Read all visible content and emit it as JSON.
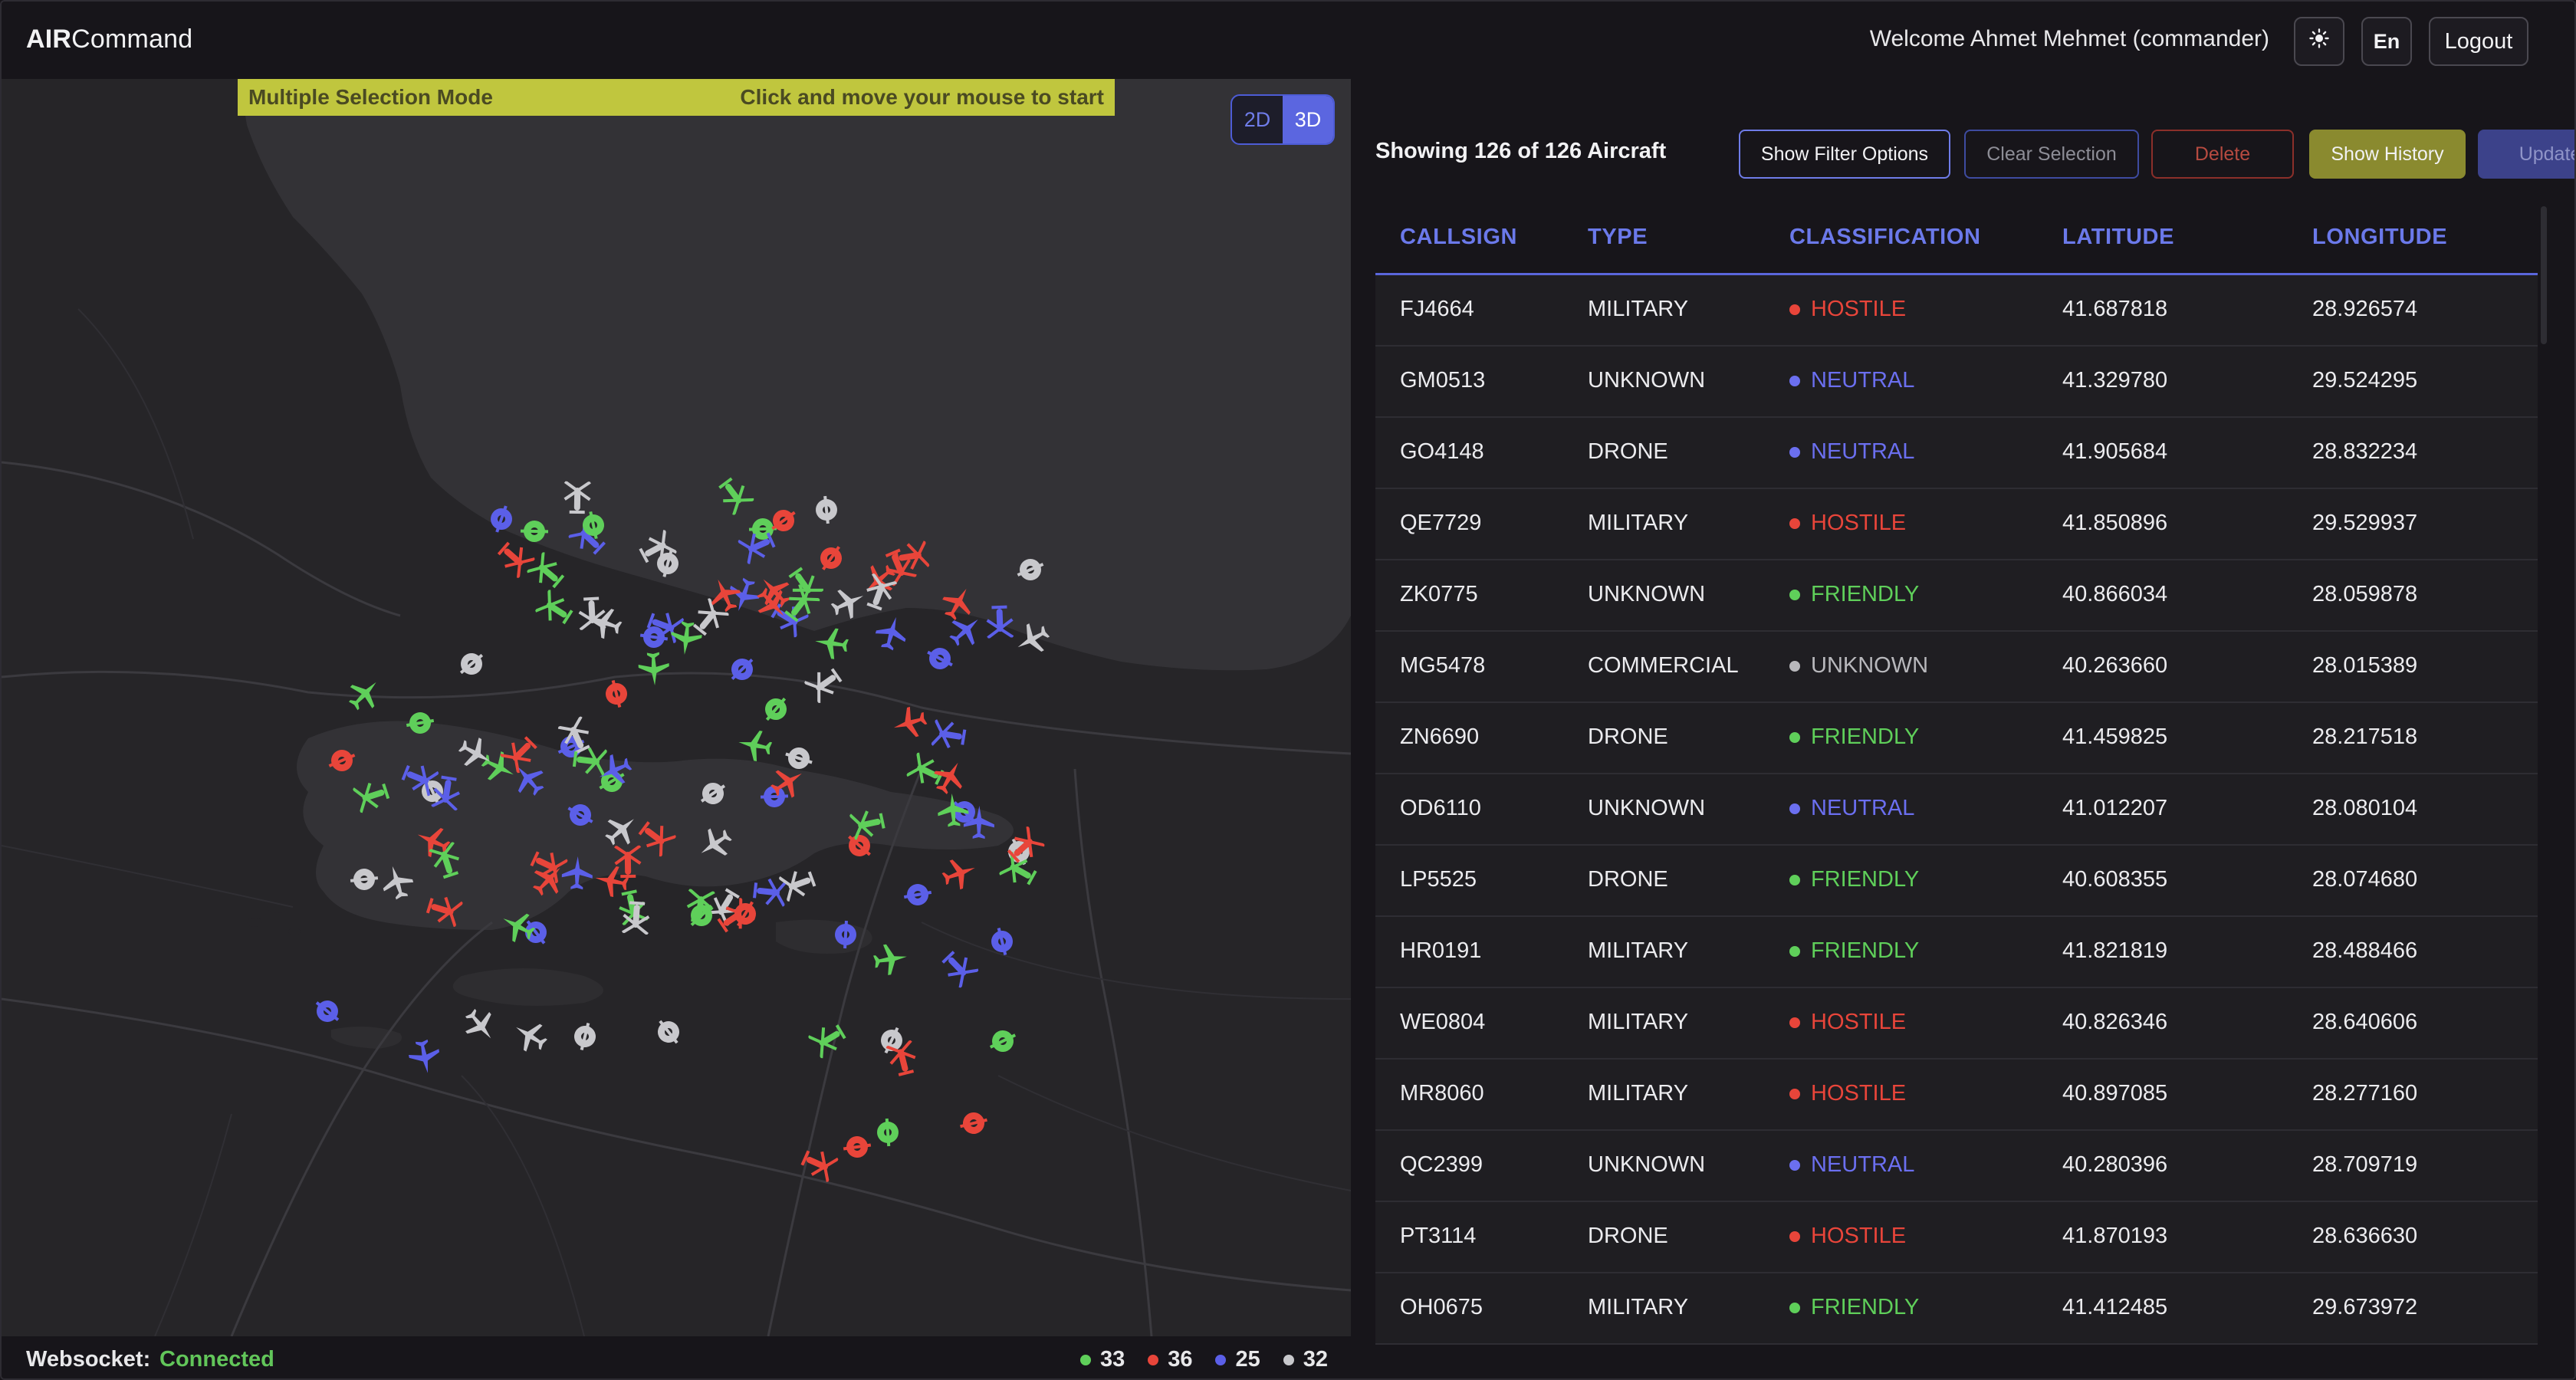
{
  "header": {
    "logo_bold": "AIR",
    "logo_rest": "Command",
    "welcome": "Welcome Ahmet Mehmet (commander)",
    "theme_icon": "sun-icon",
    "lang": "En",
    "logout": "Logout"
  },
  "map": {
    "banner_left": "Multiple Selection Mode",
    "banner_right": "Click and move your mouse to start",
    "view_2d": "2D",
    "view_3d": "3D",
    "active_view": "3D",
    "icons": [
      "plane-icon",
      "drone-icon",
      "helicopter-icon"
    ]
  },
  "footer": {
    "ws_label": "Websocket:",
    "ws_status": "Connected",
    "counts": [
      {
        "count": "33",
        "color": "#5fcf5a"
      },
      {
        "count": "36",
        "color": "#e8453a"
      },
      {
        "count": "25",
        "color": "#5b5fe8"
      },
      {
        "count": "32",
        "color": "#c8c8cc"
      }
    ]
  },
  "panel": {
    "count_text": "Showing 126 of 126 Aircraft",
    "buttons": {
      "filter": "Show Filter Options",
      "clear": "Clear Selection",
      "delete": "Delete",
      "history": "Show History",
      "update": "Update"
    },
    "columns": [
      "CALLSIGN",
      "TYPE",
      "CLASSIFICATION",
      "LATITUDE",
      "LONGITUDE"
    ],
    "class_colors": {
      "HOSTILE": "#e8453a",
      "NEUTRAL": "#6b6ff0",
      "FRIENDLY": "#5fcf5a",
      "UNKNOWN": "#b8b8bc"
    },
    "rows": [
      {
        "callsign": "FJ4664",
        "type": "MILITARY",
        "classification": "HOSTILE",
        "lat": "41.687818",
        "lon": "28.926574"
      },
      {
        "callsign": "GM0513",
        "type": "UNKNOWN",
        "classification": "NEUTRAL",
        "lat": "41.329780",
        "lon": "29.524295"
      },
      {
        "callsign": "GO4148",
        "type": "DRONE",
        "classification": "NEUTRAL",
        "lat": "41.905684",
        "lon": "28.832234"
      },
      {
        "callsign": "QE7729",
        "type": "MILITARY",
        "classification": "HOSTILE",
        "lat": "41.850896",
        "lon": "29.529937"
      },
      {
        "callsign": "ZK0775",
        "type": "UNKNOWN",
        "classification": "FRIENDLY",
        "lat": "40.866034",
        "lon": "28.059878"
      },
      {
        "callsign": "MG5478",
        "type": "COMMERCIAL",
        "classification": "UNKNOWN",
        "lat": "40.263660",
        "lon": "28.015389"
      },
      {
        "callsign": "ZN6690",
        "type": "DRONE",
        "classification": "FRIENDLY",
        "lat": "41.459825",
        "lon": "28.217518"
      },
      {
        "callsign": "OD6110",
        "type": "UNKNOWN",
        "classification": "NEUTRAL",
        "lat": "41.012207",
        "lon": "28.080104"
      },
      {
        "callsign": "LP5525",
        "type": "DRONE",
        "classification": "FRIENDLY",
        "lat": "40.608355",
        "lon": "28.074680"
      },
      {
        "callsign": "HR0191",
        "type": "MILITARY",
        "classification": "FRIENDLY",
        "lat": "41.821819",
        "lon": "28.488466"
      },
      {
        "callsign": "WE0804",
        "type": "MILITARY",
        "classification": "HOSTILE",
        "lat": "40.826346",
        "lon": "28.640606"
      },
      {
        "callsign": "MR8060",
        "type": "MILITARY",
        "classification": "HOSTILE",
        "lat": "40.897085",
        "lon": "28.277160"
      },
      {
        "callsign": "QC2399",
        "type": "UNKNOWN",
        "classification": "NEUTRAL",
        "lat": "40.280396",
        "lon": "28.709719"
      },
      {
        "callsign": "PT3114",
        "type": "DRONE",
        "classification": "HOSTILE",
        "lat": "41.870193",
        "lon": "28.636630"
      },
      {
        "callsign": "OH0675",
        "type": "MILITARY",
        "classification": "FRIENDLY",
        "lat": "41.412485",
        "lon": "29.673972"
      }
    ]
  }
}
